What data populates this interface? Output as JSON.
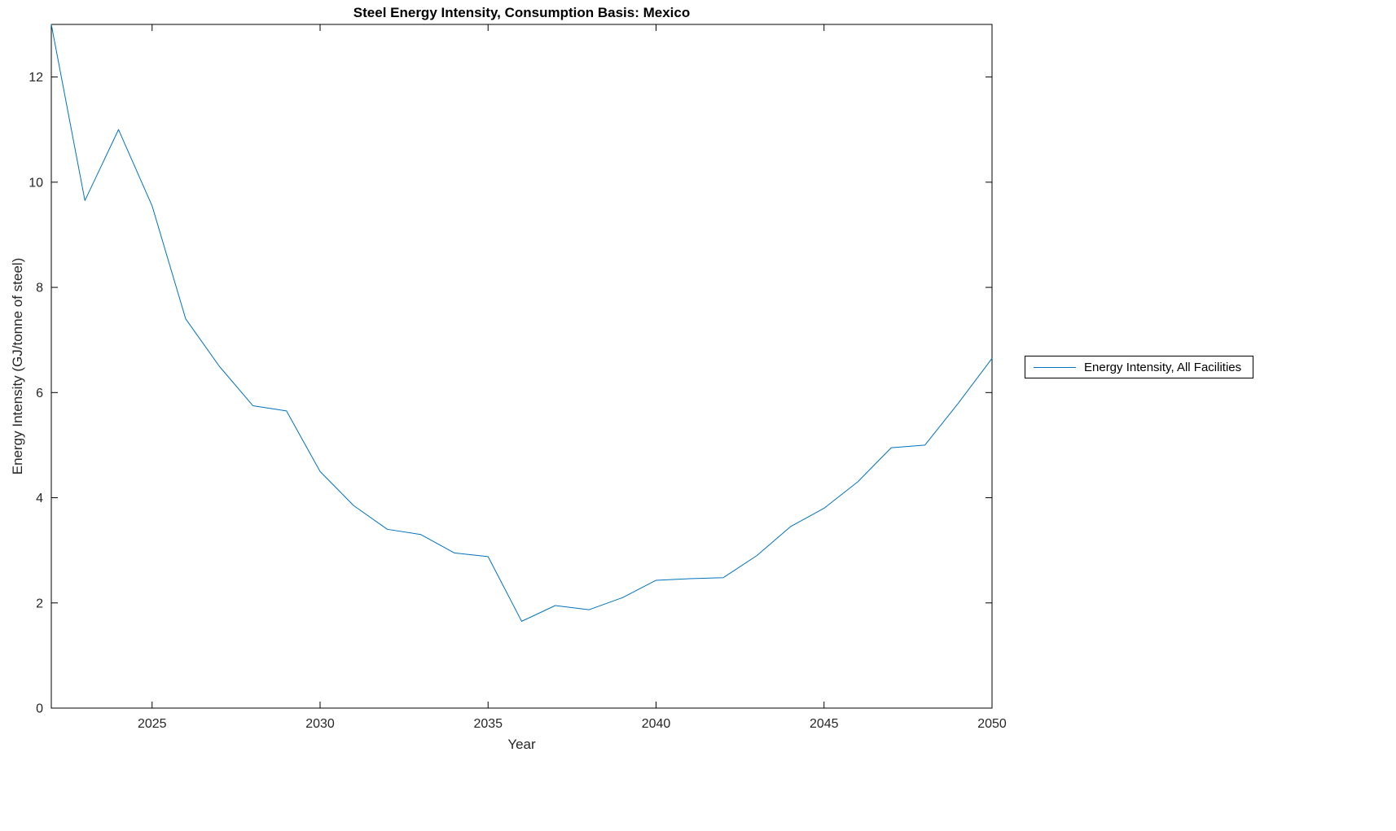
{
  "figure": {
    "background": "#ffffff"
  },
  "chart_data": {
    "type": "line",
    "title": "Steel Energy Intensity, Consumption Basis: Mexico",
    "xlabel": "Year",
    "ylabel": "Energy Intensity (GJ/tonne of steel)",
    "xlim": [
      2022,
      2050
    ],
    "ylim": [
      0,
      13
    ],
    "xticks": [
      2025,
      2030,
      2035,
      2040,
      2045,
      2050
    ],
    "yticks": [
      0,
      2,
      4,
      6,
      8,
      10,
      12
    ],
    "grid": false,
    "legend_position": "outside-right",
    "legend": [
      "Energy Intensity, All Facilities"
    ],
    "series": [
      {
        "name": "Energy Intensity, All Facilities",
        "color": "#0072BD",
        "x": [
          2022,
          2023,
          2024,
          2025,
          2026,
          2027,
          2028,
          2029,
          2030,
          2031,
          2032,
          2033,
          2034,
          2035,
          2036,
          2037,
          2038,
          2039,
          2040,
          2041,
          2042,
          2043,
          2044,
          2045,
          2046,
          2047,
          2048,
          2049,
          2050
        ],
        "y": [
          13.0,
          9.65,
          11.0,
          9.55,
          7.4,
          6.5,
          5.75,
          5.65,
          4.5,
          3.85,
          3.4,
          3.3,
          2.95,
          2.88,
          1.65,
          1.95,
          1.87,
          2.1,
          2.43,
          2.46,
          2.48,
          2.9,
          3.45,
          3.8,
          4.3,
          4.95,
          5.0,
          5.8,
          6.65
        ]
      }
    ],
    "axis_color": "#000000",
    "tick_label_color": "#262626"
  }
}
